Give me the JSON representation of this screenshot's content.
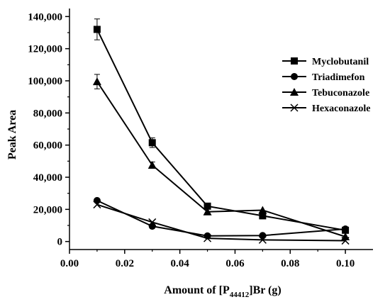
{
  "chart_data": {
    "type": "line",
    "xlabel_prefix": "Amount of [P",
    "xlabel_sub": "44412",
    "xlabel_suffix": "]Br (g)",
    "ylabel": "Peak Area",
    "xlim": [
      0.0,
      0.11
    ],
    "ylim": [
      -5000,
      145000
    ],
    "x_ticks": [
      0.0,
      0.02,
      0.04,
      0.06,
      0.08,
      0.1
    ],
    "x_tick_labels": [
      "0.00",
      "0.02",
      "0.04",
      "0.06",
      "0.08",
      "0.10"
    ],
    "y_ticks": [
      0,
      20000,
      40000,
      60000,
      80000,
      100000,
      120000,
      140000
    ],
    "y_tick_labels": [
      "0",
      "20,000",
      "40,000",
      "60,000",
      "80,000",
      "100,000",
      "120,000",
      "140,000"
    ],
    "grid": false,
    "legend_position": "top-right",
    "x": [
      0.01,
      0.03,
      0.05,
      0.07,
      0.1
    ],
    "series": [
      {
        "name": "Myclobutanil",
        "marker": "square",
        "values": [
          132000,
          61500,
          22000,
          16000,
          7000
        ],
        "errors": [
          6500,
          3000,
          1000,
          1000,
          800
        ]
      },
      {
        "name": "Triadimefon",
        "marker": "circle",
        "values": [
          25500,
          9500,
          3500,
          3700,
          7800
        ],
        "errors": [
          0,
          0,
          0,
          0,
          0
        ]
      },
      {
        "name": "Tebuconazole",
        "marker": "triangle",
        "values": [
          99500,
          47500,
          18500,
          19500,
          3000
        ],
        "errors": [
          4500,
          2000,
          0,
          0,
          0
        ]
      },
      {
        "name": "Hexaconazole",
        "marker": "cross",
        "values": [
          23000,
          12000,
          2000,
          1000,
          500
        ],
        "errors": [
          0,
          0,
          0,
          0,
          0
        ]
      }
    ]
  }
}
